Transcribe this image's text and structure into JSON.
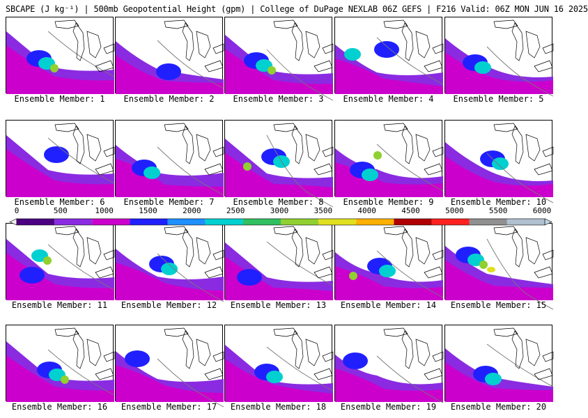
{
  "header": {
    "title": "SBCAPE (J kg⁻¹) | 500mb Geopotential Height (gpm) | College of DuPage NEXLAB 06Z GEFS | F216 Valid: 06Z MON JUN 16 2025"
  },
  "members": [
    {
      "label": "Ensemble Member: 1",
      "peak": 3
    },
    {
      "label": "Ensemble Member: 2",
      "peak": 1
    },
    {
      "label": "Ensemble Member: 3",
      "peak": 3
    },
    {
      "label": "Ensemble Member: 4",
      "peak": 2
    },
    {
      "label": "Ensemble Member: 5",
      "peak": 2
    },
    {
      "label": "Ensemble Member: 6",
      "peak": 1
    },
    {
      "label": "Ensemble Member: 7",
      "peak": 2
    },
    {
      "label": "Ensemble Member: 8",
      "peak": 3
    },
    {
      "label": "Ensemble Member: 9",
      "peak": 3
    },
    {
      "label": "Ensemble Member: 10",
      "peak": 2
    },
    {
      "label": "Ensemble Member: 11",
      "peak": 3
    },
    {
      "label": "Ensemble Member: 12",
      "peak": 2
    },
    {
      "label": "Ensemble Member: 13",
      "peak": 1
    },
    {
      "label": "Ensemble Member: 14",
      "peak": 3
    },
    {
      "label": "Ensemble Member: 15",
      "peak": 4
    },
    {
      "label": "Ensemble Member: 16",
      "peak": 3
    },
    {
      "label": "Ensemble Member: 17",
      "peak": 1
    },
    {
      "label": "Ensemble Member: 18",
      "peak": 2
    },
    {
      "label": "Ensemble Member: 19",
      "peak": 1
    },
    {
      "label": "Ensemble Member: 20",
      "peak": 2
    }
  ],
  "colorbar": {
    "ticks": [
      "0",
      "500",
      "1000",
      "1500",
      "2000",
      "2500",
      "3000",
      "3500",
      "4000",
      "4500",
      "5000",
      "5500",
      "6000"
    ],
    "colors": [
      "#4b0082",
      "#8a2be2",
      "#cc00cc",
      "#2020ff",
      "#1e90ff",
      "#00d0d0",
      "#30c060",
      "#90d030",
      "#e0e020",
      "#ffb000",
      "#b00000",
      "#ff2020",
      "#909090",
      "#b0c0d0"
    ]
  }
}
